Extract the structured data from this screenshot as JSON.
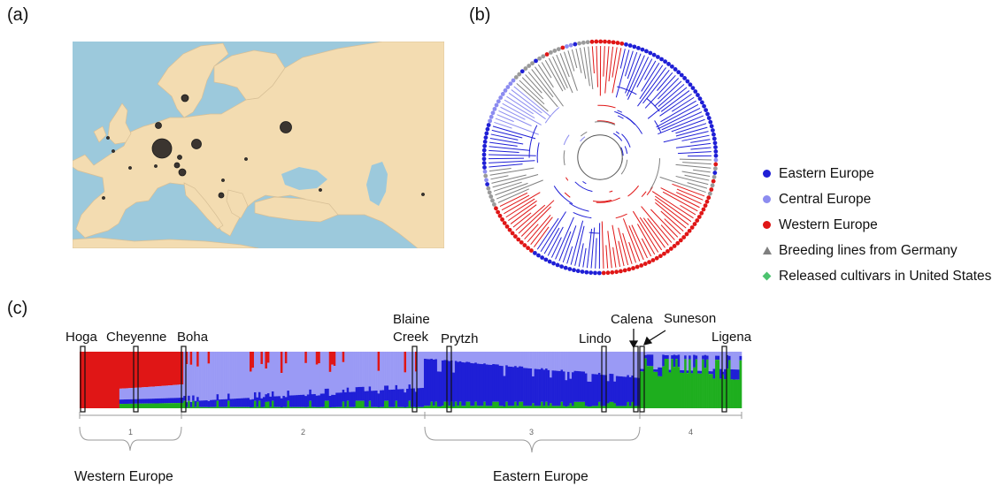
{
  "panels": {
    "a": "(a)",
    "b": "(b)",
    "c": "(c)"
  },
  "colors": {
    "eastern": "#1f1fd6",
    "central": "#9a9af5",
    "western": "#e01616",
    "breeding": "#7f7f7f",
    "released": "#2fae2f",
    "sea": "#9cc9dc",
    "land": "#f3dcb1"
  },
  "legend": [
    {
      "label": "Eastern Europe",
      "marker": "dot",
      "color": "#1f1fd6"
    },
    {
      "label": "Central Europe",
      "marker": "dot",
      "color": "#8c8cf0"
    },
    {
      "label": "Western Europe",
      "marker": "dot",
      "color": "#e01616"
    },
    {
      "label": "Breeding lines from Germany",
      "marker": "triangle",
      "color": "#7f7f7f"
    },
    {
      "label": "Released cultivars in United States",
      "marker": "diamond",
      "color": "#4cc36f"
    }
  ],
  "cultivars": [
    "Hoga",
    "Cheyenne",
    "Boha",
    "Blaine Creek",
    "Prytzh",
    "Lindo",
    "Calena",
    "Suneson",
    "Ligena"
  ],
  "clusters": [
    "1",
    "2",
    "3",
    "4"
  ],
  "regions": {
    "western": "Western Europe",
    "eastern": "Eastern Europe"
  }
}
